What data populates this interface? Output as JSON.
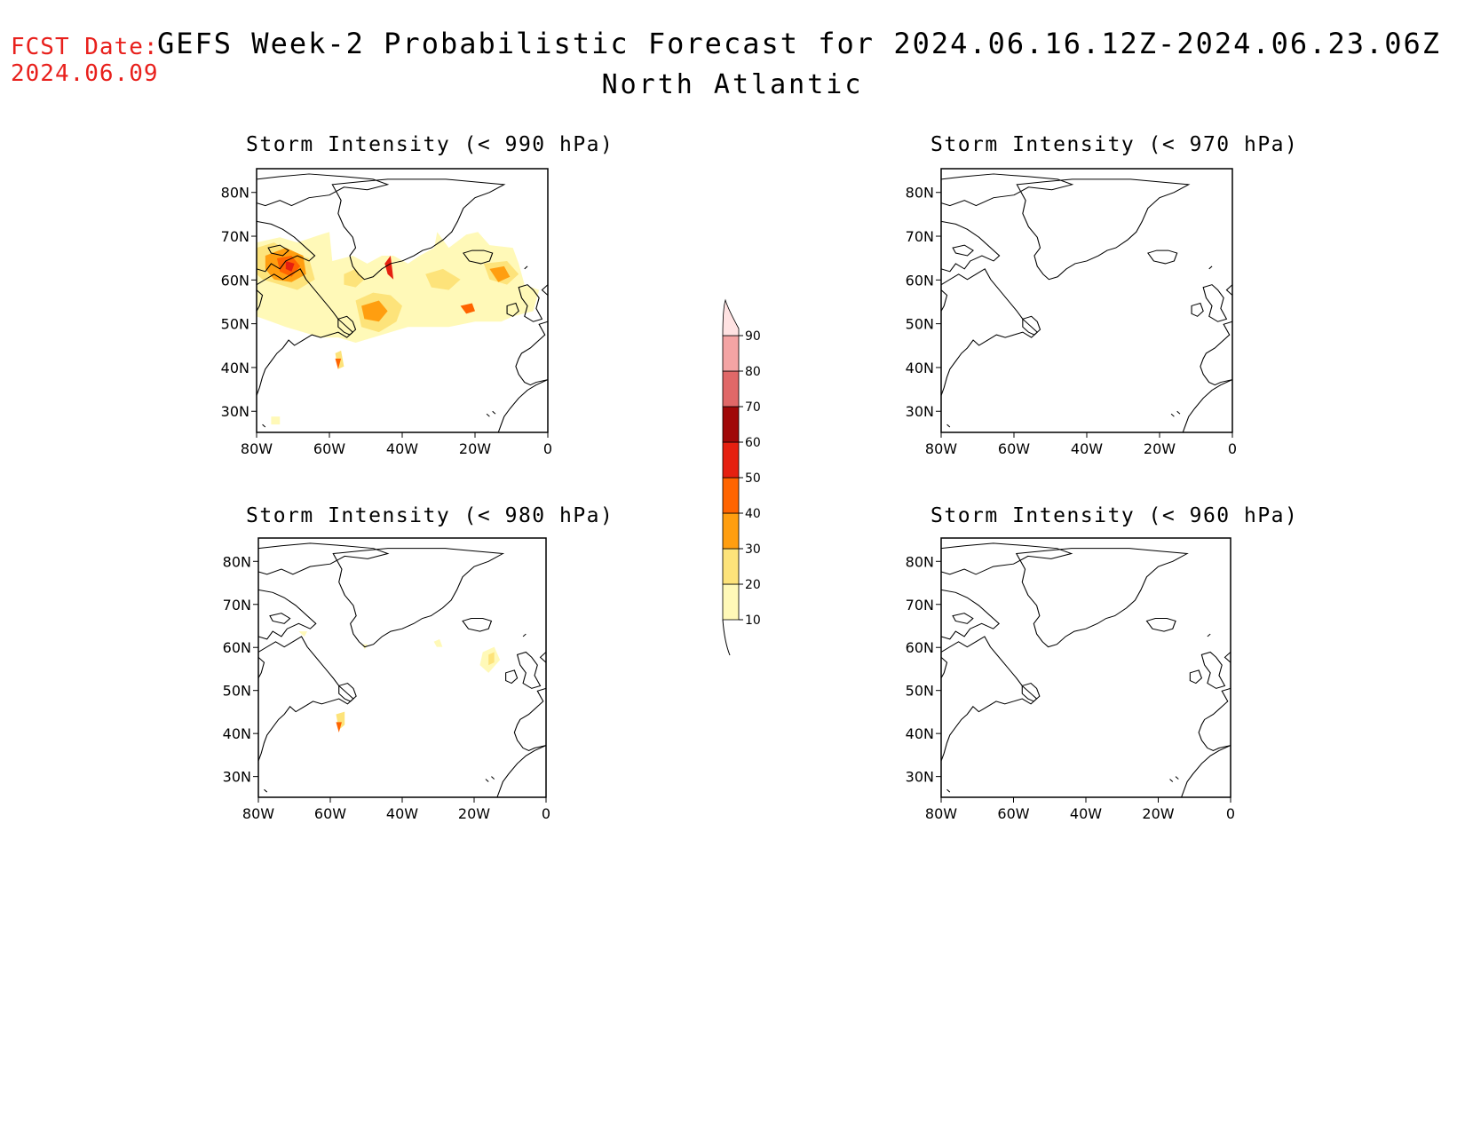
{
  "header": {
    "fcst_label": "FCST Date:",
    "fcst_date": "2024.06.09",
    "title": "GEFS Week-2 Probabilistic Forecast for 2024.06.16.12Z-2024.06.23.06Z",
    "region": "North Atlantic"
  },
  "axes": {
    "lon_ticks": [
      "80W",
      "60W",
      "40W",
      "20W",
      "0"
    ],
    "lat_ticks": [
      "80N",
      "70N",
      "60N",
      "50N",
      "40N",
      "30N"
    ]
  },
  "panels": [
    {
      "title": "Storm Intensity (< 990 hPa)"
    },
    {
      "title": "Storm Intensity (< 970 hPa)"
    },
    {
      "title": "Storm Intensity (< 980 hPa)"
    },
    {
      "title": "Storm Intensity (< 960 hPa)"
    }
  ],
  "colorbar": {
    "levels": [
      "10",
      "20",
      "30",
      "40",
      "50",
      "60",
      "70",
      "80",
      "90"
    ],
    "colors": [
      "#fff9b8",
      "#fde37a",
      "#ff9e10",
      "#ff6400",
      "#e52010",
      "#a00808",
      "#e06868",
      "#f4a4a4",
      "#ffe2e2"
    ]
  },
  "probability_colors": {
    "p10": "#fff9b8",
    "p20": "#fde37a",
    "p30": "#ff9e10",
    "p40": "#ff6400",
    "p50": "#e52010"
  }
}
